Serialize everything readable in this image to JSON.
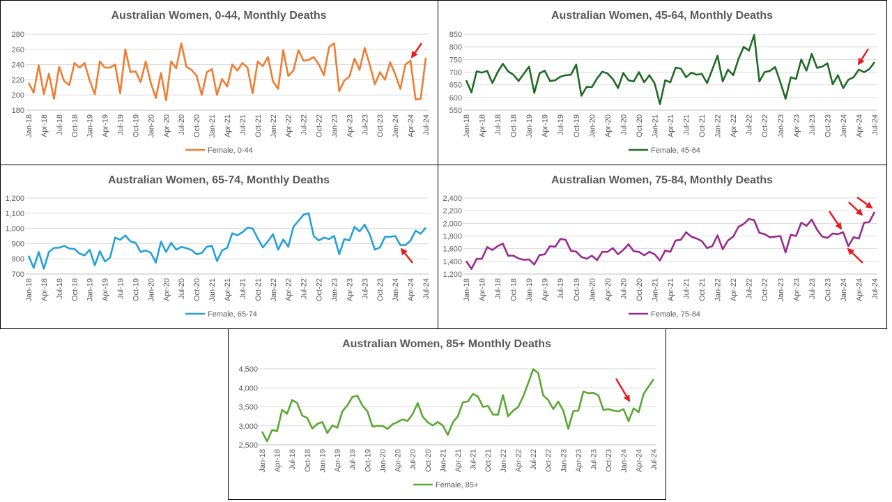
{
  "chart_data": [
    {
      "type": "line",
      "title": "Australian Women, 0-44, Monthly Deaths",
      "categories": [
        "Jan-18",
        null,
        null,
        "Apr-18",
        null,
        null,
        "Jul-18",
        null,
        null,
        "Oct-18",
        null,
        null,
        "Jan-19",
        null,
        null,
        "Apr-19",
        null,
        null,
        "Jul-19",
        null,
        null,
        "Oct-19",
        null,
        null,
        "Jan-20",
        null,
        null,
        "Apr-20",
        null,
        null,
        "Jul-20",
        null,
        null,
        "Oct-20",
        null,
        null,
        "Jan-21",
        null,
        null,
        "Apr-21",
        null,
        null,
        "Jul-21",
        null,
        null,
        "Oct-21",
        null,
        null,
        "Jan-22",
        null,
        null,
        "Apr-22",
        null,
        null,
        "Jul-22",
        null,
        null,
        "Oct-22",
        null,
        null,
        "Jan-23",
        null,
        null,
        "Apr-23",
        null,
        null,
        "Jul-23",
        null,
        null,
        "Oct-23",
        null,
        null,
        "Jan-24",
        null,
        null,
        "Apr-24",
        null,
        null,
        "Jul-24"
      ],
      "series": [
        {
          "name": "Female, 0-44",
          "color": "#ed7d31",
          "values": [
            216,
            203,
            239,
            201,
            228,
            195,
            237,
            218,
            213,
            242,
            236,
            242,
            219,
            201,
            244,
            236,
            236,
            240,
            202,
            260,
            230,
            231,
            217,
            244,
            216,
            196,
            229,
            193,
            244,
            235,
            268,
            237,
            233,
            225,
            200,
            230,
            234,
            200,
            221,
            211,
            240,
            232,
            242,
            236,
            202,
            244,
            238,
            250,
            218,
            208,
            259,
            225,
            232,
            259,
            245,
            246,
            250,
            240,
            226,
            263,
            268,
            205,
            219,
            224,
            248,
            233,
            262,
            240,
            214,
            230,
            220,
            243,
            227,
            208,
            240,
            245,
            194,
            195,
            249
          ]
        }
      ],
      "ylim": [
        180,
        280
      ],
      "yticks": [
        180,
        200,
        220,
        240,
        260,
        280
      ],
      "grid": true,
      "legend": "bottom"
    },
    {
      "type": "line",
      "title": "Australian Women, 45-64, Monthly Deaths",
      "categories": [
        "Jan-18",
        null,
        null,
        "Apr-18",
        null,
        null,
        "Jul-18",
        null,
        null,
        "Oct-18",
        null,
        null,
        "Jan-19",
        null,
        null,
        "Apr-19",
        null,
        null,
        "Jul-19",
        null,
        null,
        "Oct-19",
        null,
        null,
        "Jan-20",
        null,
        null,
        "Apr-20",
        null,
        null,
        "Jul-20",
        null,
        null,
        "Oct-20",
        null,
        null,
        "Jan-21",
        null,
        null,
        "Apr-21",
        null,
        null,
        "Jul-21",
        null,
        null,
        "Oct-21",
        null,
        null,
        "Jan-22",
        null,
        null,
        "Apr-22",
        null,
        null,
        "Jul-22",
        null,
        null,
        "Oct-22",
        null,
        null,
        "Jan-23",
        null,
        null,
        "Apr-23",
        null,
        null,
        "Jul-23",
        null,
        null,
        "Oct-23",
        null,
        null,
        "Jan-24",
        null,
        null,
        "Apr-24",
        null,
        null,
        "Jul-24"
      ],
      "series": [
        {
          "name": "Female, 45-64",
          "color": "#1e6b24",
          "values": [
            668,
            620,
            703,
            698,
            705,
            657,
            700,
            733,
            703,
            690,
            665,
            693,
            722,
            618,
            695,
            706,
            665,
            668,
            682,
            688,
            690,
            730,
            607,
            642,
            641,
            675,
            702,
            695,
            673,
            637,
            697,
            668,
            663,
            700,
            660,
            688,
            655,
            574,
            668,
            660,
            718,
            714,
            680,
            698,
            690,
            693,
            657,
            710,
            765,
            663,
            710,
            688,
            752,
            800,
            785,
            847,
            663,
            700,
            705,
            720,
            660,
            595,
            680,
            673,
            750,
            706,
            772,
            717,
            722,
            735,
            652,
            688,
            637,
            670,
            680,
            710,
            700,
            712,
            740
          ]
        }
      ],
      "ylim": [
        550,
        850
      ],
      "yticks": [
        550,
        600,
        650,
        700,
        750,
        800,
        850
      ],
      "grid": true,
      "legend": "bottom"
    },
    {
      "type": "line",
      "title": "Australian Women, 65-74, Monthly Deaths",
      "categories": [
        "Jan-18",
        null,
        null,
        "Apr-18",
        null,
        null,
        "Jul-18",
        null,
        null,
        "Oct-18",
        null,
        null,
        "Jan-19",
        null,
        null,
        "Apr-19",
        null,
        null,
        "Jul-19",
        null,
        null,
        "Oct-19",
        null,
        null,
        "Jan-20",
        null,
        null,
        "Apr-20",
        null,
        null,
        "Jul-20",
        null,
        null,
        "Oct-20",
        null,
        null,
        "Jan-21",
        null,
        null,
        "Apr-21",
        null,
        null,
        "Jul-21",
        null,
        null,
        "Oct-21",
        null,
        null,
        "Jan-22",
        null,
        null,
        "Apr-22",
        null,
        null,
        "Jul-22",
        null,
        null,
        "Oct-22",
        null,
        null,
        "Jan-23",
        null,
        null,
        "Apr-23",
        null,
        null,
        "Jul-23",
        null,
        null,
        "Oct-23",
        null,
        null,
        "Jan-24",
        null,
        null,
        "Apr-24",
        null,
        null,
        "Jul-24"
      ],
      "series": [
        {
          "name": "Female, 65-74",
          "color": "#23a0d8",
          "values": [
            820,
            740,
            845,
            735,
            845,
            872,
            873,
            885,
            868,
            865,
            835,
            822,
            860,
            758,
            850,
            782,
            808,
            940,
            925,
            953,
            915,
            905,
            845,
            855,
            840,
            775,
            913,
            845,
            905,
            860,
            878,
            870,
            858,
            830,
            838,
            880,
            885,
            785,
            855,
            872,
            968,
            955,
            975,
            1005,
            1000,
            935,
            875,
            915,
            962,
            860,
            927,
            880,
            1010,
            1050,
            1090,
            1100,
            950,
            920,
            940,
            930,
            950,
            830,
            930,
            920,
            1010,
            980,
            1025,
            960,
            860,
            875,
            945,
            945,
            950,
            890,
            890,
            920,
            985,
            965,
            1005
          ]
        }
      ],
      "ylim": [
        700,
        1200
      ],
      "yticks": [
        700,
        800,
        900,
        {
          "value": 1000,
          "label": "1,000"
        },
        {
          "value": 1100,
          "label": "1,100"
        },
        {
          "value": 1200,
          "label": "1,200"
        }
      ],
      "grid": true,
      "legend": "bottom"
    },
    {
      "type": "line",
      "title": "Australian Women, 75-84, Monthly Deaths",
      "categories": [
        "Jan-18",
        null,
        null,
        "Apr-18",
        null,
        null,
        "Jul-18",
        null,
        null,
        "Oct-18",
        null,
        null,
        "Jan-19",
        null,
        null,
        "Apr-19",
        null,
        null,
        "Jul-19",
        null,
        null,
        "Oct-19",
        null,
        null,
        "Jan-20",
        null,
        null,
        "Apr-20",
        null,
        null,
        "Jul-20",
        null,
        null,
        "Oct-20",
        null,
        null,
        "Jan-21",
        null,
        null,
        "Apr-21",
        null,
        null,
        "Jul-21",
        null,
        null,
        "Oct-21",
        null,
        null,
        "Jan-22",
        null,
        null,
        "Apr-22",
        null,
        null,
        "Jul-22",
        null,
        null,
        "Oct-22",
        null,
        null,
        "Jan-23",
        null,
        null,
        "Apr-23",
        null,
        null,
        "Jul-23",
        null,
        null,
        "Oct-23",
        null,
        null,
        "Jan-24",
        null,
        null,
        "Apr-24",
        null,
        null,
        "Jul-24"
      ],
      "series": [
        {
          "name": "Female, 75-84",
          "color": "#9b2a8e",
          "values": [
            1405,
            1280,
            1440,
            1440,
            1625,
            1580,
            1640,
            1680,
            1490,
            1490,
            1445,
            1425,
            1430,
            1350,
            1500,
            1510,
            1640,
            1630,
            1755,
            1740,
            1565,
            1555,
            1470,
            1440,
            1490,
            1420,
            1550,
            1550,
            1610,
            1510,
            1580,
            1670,
            1560,
            1550,
            1495,
            1550,
            1510,
            1415,
            1570,
            1550,
            1730,
            1740,
            1860,
            1790,
            1760,
            1720,
            1610,
            1640,
            1810,
            1590,
            1730,
            1790,
            1945,
            1990,
            2070,
            2050,
            1850,
            1830,
            1780,
            1790,
            1800,
            1540,
            1820,
            1800,
            2010,
            1960,
            2060,
            1900,
            1790,
            1770,
            1840,
            1830,
            1860,
            1640,
            1780,
            1760,
            2010,
            2020,
            2180
          ]
        }
      ],
      "ylim": [
        1200,
        2400
      ],
      "yticks": [
        {
          "value": 1200,
          "label": "1,200"
        },
        {
          "value": 1400,
          "label": "1,400"
        },
        {
          "value": 1600,
          "label": "1,600"
        },
        {
          "value": 1800,
          "label": "1,800"
        },
        {
          "value": 2000,
          "label": "2,000"
        },
        {
          "value": 2200,
          "label": "2,200"
        },
        {
          "value": 2400,
          "label": "2,400"
        }
      ],
      "grid": true,
      "legend": "bottom"
    },
    {
      "type": "line",
      "title": "Australian Women, 85+ Monthly Deaths",
      "categories": [
        "Jan-18",
        null,
        null,
        "Apr-18",
        null,
        null,
        "Jul-18",
        null,
        null,
        "Oct-18",
        null,
        null,
        "Jan-19",
        null,
        null,
        "Apr-19",
        null,
        null,
        "Jul-19",
        null,
        null,
        "Oct-19",
        null,
        null,
        "Jan-20",
        null,
        null,
        "Apr-20",
        null,
        null,
        "Jul-20",
        null,
        null,
        "Oct-20",
        null,
        null,
        "Jan-21",
        null,
        null,
        "Apr-21",
        null,
        null,
        "Jul-21",
        null,
        null,
        "Oct-21",
        null,
        null,
        "Jan-22",
        null,
        null,
        "Apr-22",
        null,
        null,
        "Jul-22",
        null,
        null,
        "Oct-22",
        null,
        null,
        "Jan-23",
        null,
        null,
        "Apr-23",
        null,
        null,
        "Jul-23",
        null,
        null,
        "Oct-23",
        null,
        null,
        "Jan-24",
        null,
        null,
        "Apr-24",
        null,
        null,
        "Jul-24"
      ],
      "series": [
        {
          "name": "Female, 85+",
          "color": "#5aa832",
          "values": [
            2850,
            2590,
            2890,
            2860,
            3420,
            3320,
            3680,
            3600,
            3270,
            3210,
            2930,
            3050,
            3100,
            2810,
            3010,
            2950,
            3380,
            3540,
            3760,
            3790,
            3530,
            3380,
            2980,
            3000,
            3000,
            2920,
            3040,
            3100,
            3170,
            3130,
            3310,
            3600,
            3240,
            3090,
            3010,
            3100,
            3010,
            2760,
            3090,
            3250,
            3620,
            3640,
            3840,
            3770,
            3500,
            3520,
            3300,
            3290,
            3810,
            3250,
            3400,
            3490,
            3770,
            4120,
            4490,
            4390,
            3800,
            3680,
            3440,
            3640,
            3400,
            2920,
            3390,
            3400,
            3900,
            3860,
            3870,
            3800,
            3420,
            3440,
            3400,
            3380,
            3440,
            3120,
            3460,
            3360,
            3840,
            4040,
            4230
          ]
        }
      ],
      "ylim": [
        2500,
        4500
      ],
      "yticks": [
        {
          "value": 2500,
          "label": "2,500"
        },
        {
          "value": 3000,
          "label": "3,000"
        },
        {
          "value": 3500,
          "label": "3,500"
        },
        {
          "value": 4000,
          "label": "4,000"
        },
        {
          "value": 4500,
          "label": "4,500"
        }
      ],
      "grid": true,
      "legend": "bottom"
    }
  ]
}
